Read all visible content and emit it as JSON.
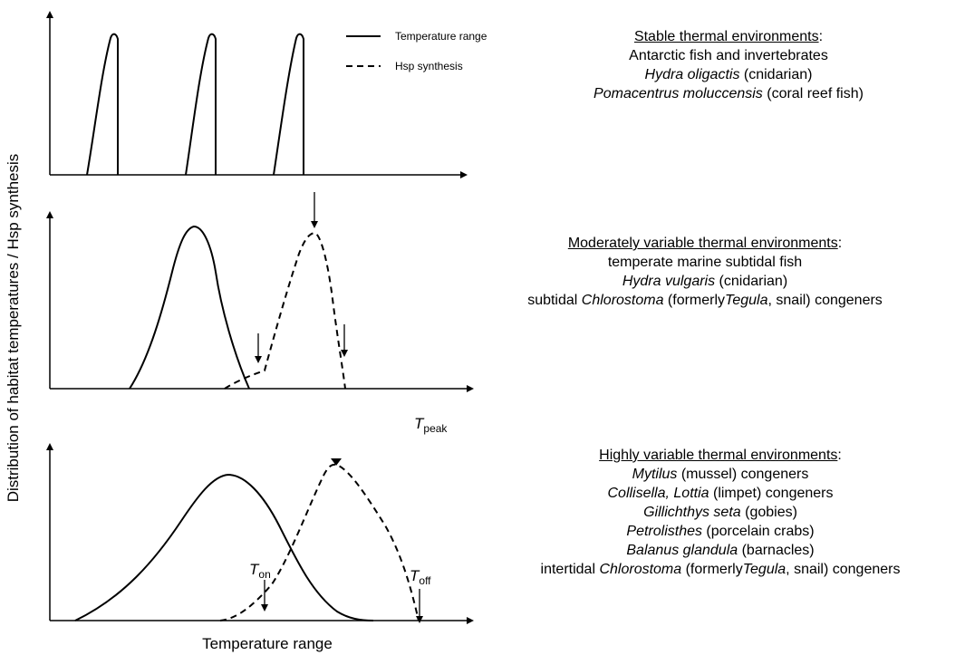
{
  "figure": {
    "y_axis_label": "Distribution of habitat temperatures / Hsp synthesis",
    "x_axis_label": "Temperature range",
    "legend": {
      "solid": "Temperature range",
      "dashed": "Hsp synthesis"
    },
    "markers": {
      "t_peak_main": "T",
      "t_peak_sub": "peak",
      "t_on_main": "T",
      "t_on_sub": "on",
      "t_off_main": "T",
      "t_off_sub": "off"
    }
  },
  "panels": [
    {
      "heading": "Stable thermal environments",
      "heading_suffix": ":",
      "lines": [
        [
          {
            "t": "Antarctic fish and invertebrates",
            "i": false
          }
        ],
        [
          {
            "t": "Hydra oligactis",
            "i": true
          },
          {
            "t": " (cnidarian)",
            "i": false
          }
        ],
        [
          {
            "t": "Pomacentrus moluccensis",
            "i": true
          },
          {
            "t": " (coral reef fish)",
            "i": false
          }
        ]
      ]
    },
    {
      "heading": "Moderately variable thermal environments",
      "heading_suffix": ":",
      "lines": [
        [
          {
            "t": "temperate marine subtidal fish",
            "i": false
          }
        ],
        [
          {
            "t": "Hydra vulgaris",
            "i": true
          },
          {
            "t": " (cnidarian)",
            "i": false
          }
        ],
        [
          {
            "t": "subtidal ",
            "i": false
          },
          {
            "t": "Chlorostoma",
            "i": true
          },
          {
            "t": " (formerly",
            "i": false
          },
          {
            "t": "Tegula",
            "i": true
          },
          {
            "t": ", snail) congeners",
            "i": false
          }
        ]
      ]
    },
    {
      "heading": "Highly variable thermal environments",
      "heading_suffix": ":",
      "lines": [
        [
          {
            "t": "Mytilus",
            "i": true
          },
          {
            "t": " (mussel) congeners",
            "i": false
          }
        ],
        [
          {
            "t": "Collisella, Lottia",
            "i": true
          },
          {
            "t": " (limpet) congeners",
            "i": false
          }
        ],
        [
          {
            "t": "Gillichthys seta",
            "i": true
          },
          {
            "t": " (gobies)",
            "i": false
          }
        ],
        [
          {
            "t": "Petrolisthes",
            "i": true
          },
          {
            "t": "  (porcelain crabs)",
            "i": false
          }
        ],
        [
          {
            "t": "Balanus glandula",
            "i": true
          },
          {
            "t": "  (barnacles)",
            "i": false
          }
        ],
        [
          {
            "t": "intertidal ",
            "i": false
          },
          {
            "t": "Chlorostoma",
            "i": true
          },
          {
            "t": " (formerly",
            "i": false
          },
          {
            "t": "Tegula",
            "i": true
          },
          {
            "t": ", snail) congeners",
            "i": false
          }
        ]
      ]
    }
  ]
}
